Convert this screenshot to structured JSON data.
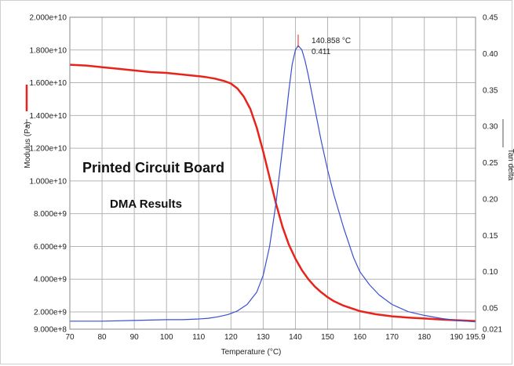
{
  "chart_data": {
    "type": "line",
    "xlabel": "Temperature (°C)",
    "ylabel_left": "Modulus (Pa)",
    "ylabel_right": "Tan delta",
    "xlim": [
      70,
      195.9
    ],
    "ylim_left": [
      900000000,
      20000000000
    ],
    "ylim_right": [
      0.02,
      0.45
    ],
    "grid": true,
    "x_ticks": [
      70,
      80,
      90,
      100,
      110,
      120,
      130,
      140,
      150,
      160,
      170,
      180,
      190
    ],
    "x_tick_labels": [
      "70",
      "80",
      "90",
      "100",
      "110",
      "120",
      "130",
      "140",
      "150",
      "160",
      "170",
      "180",
      "190"
    ],
    "x_end_label": "195.9",
    "left_ticks": [
      900000000,
      2000000000,
      4000000000,
      6000000000,
      8000000000,
      10000000000,
      12000000000,
      14000000000,
      16000000000,
      18000000000,
      20000000000
    ],
    "left_tick_labels": [
      "9.000e+8",
      "2.000e+9",
      "4.000e+9",
      "6.000e+9",
      "8.000e+9",
      "1.000e+10",
      "1.200e+10",
      "1.400e+10",
      "1.600e+10",
      "1.800e+10",
      "2.000e+10"
    ],
    "right_ticks": [
      0.05,
      0.1,
      0.15,
      0.2,
      0.25,
      0.3,
      0.35,
      0.4,
      0.45
    ],
    "right_tick_labels": [
      "0.05",
      "0.10",
      "0.15",
      "0.20",
      "0.25",
      "0.30",
      "0.35",
      "0.40",
      "0.45"
    ],
    "right_bottom_label": "0.021",
    "annotations": {
      "title1": "Printed Circuit Board",
      "title2": "DMA Results",
      "peak_temp": "140.858 °C",
      "peak_value": "0.411",
      "peak_x": 140.858,
      "peak_y": 0.411
    },
    "series": [
      {
        "axis": "left",
        "color": "#e8231c",
        "x": [
          70,
          75,
          80,
          85,
          90,
          95,
          100,
          105,
          110,
          112,
          115,
          118,
          120,
          122,
          124,
          126,
          128,
          130,
          132,
          134,
          136,
          138,
          140,
          142,
          144,
          146,
          148,
          150,
          152,
          155,
          158,
          160,
          165,
          170,
          175,
          180,
          185,
          190,
          195.9
        ],
        "values": [
          17100000000,
          17050000000,
          16950000000,
          16850000000,
          16750000000,
          16650000000,
          16600000000,
          16500000000,
          16400000000,
          16350000000,
          16250000000,
          16100000000,
          15950000000,
          15650000000,
          15150000000,
          14400000000,
          13250000000,
          11800000000,
          10200000000,
          8600000000,
          7200000000,
          6100000000,
          5250000000,
          4550000000,
          4000000000,
          3550000000,
          3200000000,
          2900000000,
          2650000000,
          2380000000,
          2180000000,
          2050000000,
          1850000000,
          1720000000,
          1640000000,
          1580000000,
          1520000000,
          1470000000,
          1420000000
        ]
      },
      {
        "axis": "right",
        "color": "#3a4fd0",
        "x": [
          70,
          80,
          90,
          100,
          105,
          110,
          113,
          116,
          119,
          122,
          125,
          128,
          130,
          132,
          134,
          136,
          138,
          139,
          140,
          140.858,
          142,
          143,
          144,
          146,
          148,
          150,
          152,
          155,
          158,
          160,
          163,
          166,
          170,
          175,
          180,
          185,
          190,
          195.9
        ],
        "values": [
          0.032,
          0.032,
          0.033,
          0.034,
          0.034,
          0.035,
          0.036,
          0.038,
          0.041,
          0.046,
          0.055,
          0.072,
          0.095,
          0.135,
          0.195,
          0.27,
          0.35,
          0.385,
          0.405,
          0.411,
          0.405,
          0.39,
          0.37,
          0.325,
          0.28,
          0.24,
          0.205,
          0.16,
          0.12,
          0.1,
          0.082,
          0.068,
          0.055,
          0.045,
          0.04,
          0.036,
          0.033,
          0.031
        ]
      }
    ]
  }
}
